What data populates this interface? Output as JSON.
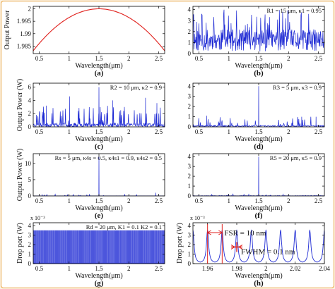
{
  "chart_data": [
    {
      "id": "a",
      "type": "line",
      "panel_label": "(a)",
      "xlabel": "Wavelength(μm)",
      "ylabel": "Output Power",
      "xlim": [
        0.4,
        2.6
      ],
      "ylim": [
        1.982,
        2.001
      ],
      "xticks": [
        "0.5",
        "1",
        "1.5",
        "2",
        "2.5"
      ],
      "xtick_values": [
        0.5,
        1,
        1.5,
        2,
        2.5
      ],
      "yticks": [
        "1.985",
        "1.99",
        "1.995",
        "2"
      ],
      "ytick_values": [
        1.985,
        1.99,
        1.995,
        2
      ],
      "exponent": "",
      "annotation": "",
      "series": [
        {
          "color": "#e0201c",
          "x": [
            0.4,
            0.6,
            0.8,
            1.0,
            1.2,
            1.4,
            1.5,
            1.6,
            1.8,
            2.0,
            2.2,
            2.4,
            2.6
          ],
          "y": [
            1.9833,
            1.9886,
            1.9929,
            1.9963,
            1.9986,
            1.9998,
            2.0,
            1.9998,
            1.9986,
            1.9963,
            1.9929,
            1.9886,
            1.9833
          ]
        }
      ]
    },
    {
      "id": "b",
      "type": "line",
      "panel_label": "(b)",
      "xlabel": "Wavelength(μm)",
      "ylabel": "",
      "xlim": [
        0.4,
        2.6
      ],
      "ylim": [
        0,
        4.3
      ],
      "xticks": [
        "0.5",
        "1",
        "1.5",
        "2",
        "2.5"
      ],
      "xtick_values": [
        0.5,
        1,
        1.5,
        2,
        2.5
      ],
      "yticks": [
        "0",
        "1",
        "2",
        "3",
        "4"
      ],
      "ytick_values": [
        0,
        1,
        2,
        3,
        4
      ],
      "exponent": "",
      "annotation": "R1 = 15 μm,   κ1 = 0.95",
      "signal": {
        "kind": "noise",
        "seed": 11,
        "count": 360,
        "base_min": 0.2,
        "base_max": 2.2,
        "spike_prob": 0.1,
        "spike_min": 2.4,
        "spike_max": 4.0,
        "peaks": [],
        "color": "#1f2bd4"
      }
    },
    {
      "id": "c",
      "type": "line",
      "panel_label": "(c)",
      "xlabel": "Wavelength(μm)",
      "ylabel": "Output Power (W)",
      "xlim": [
        0.4,
        2.6
      ],
      "ylim": [
        0,
        6.6
      ],
      "xticks": [
        "0.5",
        "1",
        "1.5",
        "2",
        "2.5"
      ],
      "xtick_values": [
        0.5,
        1,
        1.5,
        2,
        2.5
      ],
      "yticks": [
        "0",
        "2",
        "4",
        "6"
      ],
      "ytick_values": [
        0,
        2,
        4,
        6
      ],
      "exponent": "",
      "annotation": "R2 = 10  μm,   κ2 = 0.9",
      "signal": {
        "kind": "noise",
        "seed": 23,
        "count": 360,
        "base_min": 0.0,
        "base_max": 0.6,
        "spike_prob": 0.12,
        "spike_min": 0.8,
        "spike_max": 3.2,
        "peaks": [
          {
            "x": 1.5,
            "y": 6.0
          },
          {
            "x": 1.01,
            "y": 4.6
          },
          {
            "x": 2.28,
            "y": 4.4
          },
          {
            "x": 1.73,
            "y": 4.0
          },
          {
            "x": 2.47,
            "y": 3.6
          },
          {
            "x": 0.62,
            "y": 3.2
          }
        ],
        "color": "#1f2bd4"
      }
    },
    {
      "id": "d",
      "type": "line",
      "panel_label": "(d)",
      "xlabel": "Wavelength(μm)",
      "ylabel": "",
      "xlim": [
        0.4,
        2.6
      ],
      "ylim": [
        0,
        4.3
      ],
      "xticks": [
        "0.5",
        "1",
        "1.5",
        "2",
        "2.5"
      ],
      "xtick_values": [
        0.5,
        1,
        1.5,
        2,
        2.5
      ],
      "yticks": [
        "0",
        "1",
        "2",
        "3",
        "4"
      ],
      "ytick_values": [
        0,
        1,
        2,
        3,
        4
      ],
      "exponent": "",
      "annotation": "R3 = 5  μm,   κ3 = 0.9",
      "signal": {
        "kind": "noise",
        "seed": 37,
        "count": 340,
        "base_min": 0.0,
        "base_max": 0.15,
        "spike_prob": 0.07,
        "spike_min": 0.2,
        "spike_max": 1.0,
        "peaks": [
          {
            "x": 1.5,
            "y": 4.0
          },
          {
            "x": 0.63,
            "y": 1.1
          },
          {
            "x": 2.22,
            "y": 1.0
          },
          {
            "x": 2.46,
            "y": 1.0
          }
        ],
        "color": "#1f2bd4"
      }
    },
    {
      "id": "e",
      "type": "line",
      "panel_label": "(e)",
      "xlabel": "Wavelength(μm)",
      "ylabel": "Output Power (W)",
      "xlim": [
        0.4,
        2.6
      ],
      "ylim": [
        0,
        13
      ],
      "xticks": [
        "0.5",
        "1",
        "1.5",
        "2",
        "2.5"
      ],
      "xtick_values": [
        0.5,
        1,
        1.5,
        2,
        2.5
      ],
      "yticks": [
        "0",
        "5",
        "10"
      ],
      "ytick_values": [
        0,
        5,
        10
      ],
      "exponent": "",
      "annotation": "Rs = 5  μm,   κ4s = 0.5,   κ4s1 = 0.9,   κ4s2 = 0.5",
      "signal": {
        "kind": "noise",
        "seed": 51,
        "count": 300,
        "base_min": 0.0,
        "base_max": 0.05,
        "spike_prob": 0.03,
        "spike_min": 0.1,
        "spike_max": 0.5,
        "peaks": [
          {
            "x": 1.5,
            "y": 12.0
          },
          {
            "x": 2.45,
            "y": 1.0
          },
          {
            "x": 0.55,
            "y": 0.5
          }
        ],
        "color": "#1f2bd4"
      }
    },
    {
      "id": "f",
      "type": "line",
      "panel_label": "(f)",
      "xlabel": "Wavelength(μm)",
      "ylabel": "",
      "xlim": [
        0.4,
        2.6
      ],
      "ylim": [
        0,
        4.3
      ],
      "xticks": [
        "0.5",
        "1",
        "1.5",
        "2",
        "2.5"
      ],
      "xtick_values": [
        0.5,
        1,
        1.5,
        2,
        2.5
      ],
      "yticks": [
        "0",
        "1",
        "2",
        "3",
        "4"
      ],
      "ytick_values": [
        0,
        1,
        2,
        3,
        4
      ],
      "exponent": "",
      "annotation": "R5 = 20  μm,   κ5 = 0.9",
      "signal": {
        "kind": "noise",
        "seed": 63,
        "count": 300,
        "base_min": 0.0,
        "base_max": 0.04,
        "spike_prob": 0.02,
        "spike_min": 0.05,
        "spike_max": 0.3,
        "peaks": [
          {
            "x": 1.5,
            "y": 4.0
          }
        ],
        "color": "#1f2bd4"
      }
    },
    {
      "id": "g",
      "type": "line",
      "panel_label": "(g)",
      "xlabel": "Wavelength(μm)",
      "ylabel": "Drop port (W)",
      "xlim": [
        0.4,
        2.6
      ],
      "ylim": [
        0,
        4.3
      ],
      "xticks": [
        "0.5",
        "1",
        "1.5",
        "2",
        "2.5"
      ],
      "xtick_values": [
        0.5,
        1,
        1.5,
        2,
        2.5
      ],
      "yticks": [
        "0",
        "1",
        "2",
        "3",
        "4"
      ],
      "ytick_values": [
        0,
        1,
        2,
        3,
        4
      ],
      "exponent": "x 10⁻³",
      "annotation": "Rd = 20  μm,   K1 = 0.1  K2 = 0.1",
      "signal": {
        "kind": "comb",
        "count": 175,
        "ymin": 0.05,
        "ymax": 3.5,
        "width": 0.004,
        "color": "#1f2bd4"
      }
    },
    {
      "id": "h",
      "type": "line",
      "panel_label": "(h)",
      "xlabel": "Wavelength(μm)",
      "ylabel": "Drop port (W)",
      "xlim": [
        1.95,
        2.04
      ],
      "ylim": [
        0,
        4.3
      ],
      "xticks": [
        "1.96",
        "1.98",
        "2",
        "2.02",
        "2.04"
      ],
      "xtick_values": [
        1.96,
        1.98,
        2.0,
        2.02,
        2.04
      ],
      "yticks": [
        "0",
        "1",
        "2",
        "3",
        "4"
      ],
      "ytick_values": [
        0,
        1,
        2,
        3,
        4
      ],
      "exponent": "x 10⁻³",
      "annotation": "",
      "signal": {
        "kind": "lorentz",
        "start": 1.95,
        "fsr": 0.01,
        "fwhm": 0.0001,
        "peak": 3.5,
        "floor": 0.05,
        "color": "#1f2bd4"
      },
      "fsr_label": "FSR = 10 nm",
      "fwhm_label": "FWHM = 0.1 nm"
    }
  ]
}
